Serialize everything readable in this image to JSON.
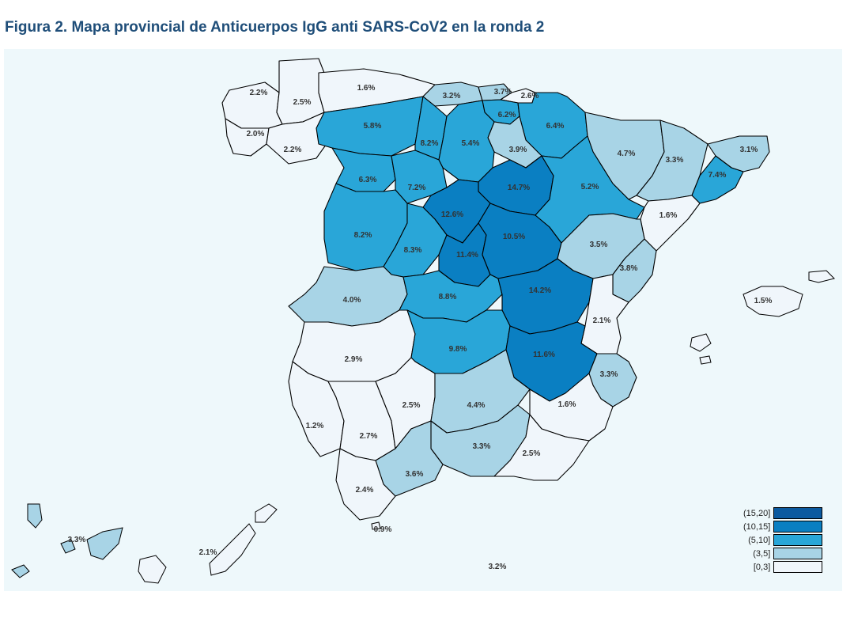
{
  "title": "Figura 2. Mapa provincial de Anticuerpos IgG anti SARS-CoV2 en la ronda 2",
  "legend": [
    {
      "label": "(15,20]",
      "color": "#0b5aa0"
    },
    {
      "label": "(10,15]",
      "color": "#0a7fc2"
    },
    {
      "label": "(5,10]",
      "color": "#29a6d8"
    },
    {
      "label": "(3,5]",
      "color": "#a8d4e6"
    },
    {
      "label": "[0,3]",
      "color": "#f0f6fb"
    }
  ],
  "provinces": [
    {
      "id": "a-coruna",
      "label": "2.2%",
      "value": 2.2,
      "cls": 4
    },
    {
      "id": "lugo",
      "label": "2.5%",
      "value": 2.5,
      "cls": 4
    },
    {
      "id": "pontevedra",
      "label": "2.0%",
      "value": 2.0,
      "cls": 4
    },
    {
      "id": "ourense",
      "label": "2.2%",
      "value": 2.2,
      "cls": 4
    },
    {
      "id": "asturias",
      "label": "1.6%",
      "value": 1.6,
      "cls": 4
    },
    {
      "id": "cantabria",
      "label": "3.2%",
      "value": 3.2,
      "cls": 3
    },
    {
      "id": "bizkaia",
      "label": "3.7%",
      "value": 3.7,
      "cls": 3
    },
    {
      "id": "gipuzkoa",
      "label": "2.6%",
      "value": 2.6,
      "cls": 4
    },
    {
      "id": "araba",
      "label": "6.2%",
      "value": 6.2,
      "cls": 2
    },
    {
      "id": "navarra",
      "label": "6.4%",
      "value": 6.4,
      "cls": 2
    },
    {
      "id": "la-rioja",
      "label": "3.9%",
      "value": 3.9,
      "cls": 3
    },
    {
      "id": "leon",
      "label": "5.8%",
      "value": 5.8,
      "cls": 2
    },
    {
      "id": "palencia",
      "label": "8.2%",
      "value": 8.2,
      "cls": 2
    },
    {
      "id": "burgos",
      "label": "5.4%",
      "value": 5.4,
      "cls": 2
    },
    {
      "id": "zamora",
      "label": "6.3%",
      "value": 6.3,
      "cls": 2
    },
    {
      "id": "valladolid",
      "label": "7.2%",
      "value": 7.2,
      "cls": 2
    },
    {
      "id": "soria",
      "label": "14.7%",
      "value": 14.7,
      "cls": 1
    },
    {
      "id": "segovia",
      "label": "12.6%",
      "value": 12.6,
      "cls": 1
    },
    {
      "id": "salamanca",
      "label": "8.2%",
      "value": 8.2,
      "cls": 2
    },
    {
      "id": "avila",
      "label": "8.3%",
      "value": 8.3,
      "cls": 2
    },
    {
      "id": "madrid",
      "label": "11.4%",
      "value": 11.4,
      "cls": 1
    },
    {
      "id": "guadalajara",
      "label": "10.5%",
      "value": 10.5,
      "cls": 1
    },
    {
      "id": "huesca",
      "label": "4.7%",
      "value": 4.7,
      "cls": 3
    },
    {
      "id": "zaragoza",
      "label": "5.2%",
      "value": 5.2,
      "cls": 2
    },
    {
      "id": "lleida",
      "label": "3.3%",
      "value": 3.3,
      "cls": 3
    },
    {
      "id": "girona",
      "label": "3.1%",
      "value": 3.1,
      "cls": 3
    },
    {
      "id": "barcelona",
      "label": "7.4%",
      "value": 7.4,
      "cls": 2
    },
    {
      "id": "tarragona",
      "label": "1.6%",
      "value": 1.6,
      "cls": 4
    },
    {
      "id": "teruel",
      "label": "3.5%",
      "value": 3.5,
      "cls": 3
    },
    {
      "id": "castellon",
      "label": "3.8%",
      "value": 3.8,
      "cls": 3
    },
    {
      "id": "caceres",
      "label": "4.0%",
      "value": 4.0,
      "cls": 3
    },
    {
      "id": "toledo",
      "label": "8.8%",
      "value": 8.8,
      "cls": 2
    },
    {
      "id": "cuenca",
      "label": "14.2%",
      "value": 14.2,
      "cls": 1
    },
    {
      "id": "valencia",
      "label": "2.1%",
      "value": 2.1,
      "cls": 4
    },
    {
      "id": "badajoz",
      "label": "2.9%",
      "value": 2.9,
      "cls": 4
    },
    {
      "id": "ciudad-real",
      "label": "9.8%",
      "value": 9.8,
      "cls": 2
    },
    {
      "id": "albacete",
      "label": "11.6%",
      "value": 11.6,
      "cls": 1
    },
    {
      "id": "alicante",
      "label": "3.3%",
      "value": 3.3,
      "cls": 3
    },
    {
      "id": "huelva",
      "label": "1.2%",
      "value": 1.2,
      "cls": 4
    },
    {
      "id": "sevilla",
      "label": "2.7%",
      "value": 2.7,
      "cls": 4
    },
    {
      "id": "cordoba",
      "label": "2.5%",
      "value": 2.5,
      "cls": 4
    },
    {
      "id": "jaen",
      "label": "4.4%",
      "value": 4.4,
      "cls": 3
    },
    {
      "id": "murcia",
      "label": "1.6%",
      "value": 1.6,
      "cls": 4
    },
    {
      "id": "granada",
      "label": "3.3%",
      "value": 3.3,
      "cls": 3
    },
    {
      "id": "almeria",
      "label": "2.5%",
      "value": 2.5,
      "cls": 4
    },
    {
      "id": "malaga",
      "label": "3.6%",
      "value": 3.6,
      "cls": 3
    },
    {
      "id": "cadiz",
      "label": "2.4%",
      "value": 2.4,
      "cls": 4
    },
    {
      "id": "baleares",
      "label": "1.5%",
      "value": 1.5,
      "cls": 4
    },
    {
      "id": "santa-cruz-de-tenerife",
      "label": "3.3%",
      "value": 3.3,
      "cls": 3
    },
    {
      "id": "las-palmas",
      "label": "2.1%",
      "value": 2.1,
      "cls": 4
    },
    {
      "id": "ceuta",
      "label": "0.9%",
      "value": 0.9,
      "cls": 4
    },
    {
      "id": "melilla",
      "label": "3.2%",
      "value": 3.2,
      "cls": 3
    }
  ]
}
